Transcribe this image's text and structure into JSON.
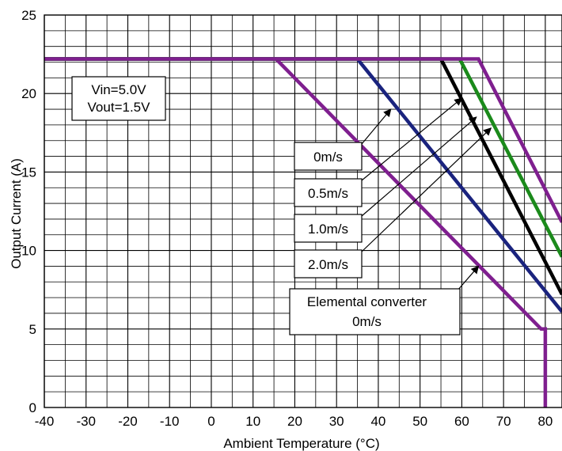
{
  "chart_data": {
    "type": "line",
    "title": "",
    "xlabel": "Ambient Temperature (°C)",
    "ylabel": "Output Current (A)",
    "xlim": [
      -40,
      84
    ],
    "ylim": [
      0,
      25
    ],
    "x_ticks": [
      -40,
      -30,
      -20,
      -10,
      0,
      10,
      20,
      30,
      40,
      50,
      60,
      70,
      80
    ],
    "y_ticks": [
      0,
      5,
      10,
      15,
      20,
      25
    ],
    "x_tick_labels": [
      "-40",
      "-30",
      "-20",
      "-10",
      "0",
      "10",
      "20",
      "30",
      "40",
      "50",
      "60",
      "70",
      "80"
    ],
    "y_tick_labels": [
      "0",
      "5",
      "10",
      "15",
      "20",
      "25"
    ],
    "grid": true,
    "legend": "none",
    "series": [
      {
        "label_ref": "elemental",
        "color": "#7f1f8f",
        "points": [
          [
            -40,
            22.2
          ],
          [
            15.5,
            22.2
          ],
          [
            79,
            5.0
          ],
          [
            80,
            5.0
          ],
          [
            80,
            0
          ]
        ]
      },
      {
        "label_ref": "0ms",
        "color": "#1a237e",
        "points": [
          [
            -40,
            22.2
          ],
          [
            35,
            22.2
          ],
          [
            84,
            6.1
          ]
        ]
      },
      {
        "label_ref": "05ms",
        "color": "#000000",
        "points": [
          [
            -40,
            22.2
          ],
          [
            55,
            22.2
          ],
          [
            84,
            7.2
          ]
        ]
      },
      {
        "label_ref": "10ms",
        "color": "#1b8a1b",
        "points": [
          [
            -40,
            22.2
          ],
          [
            59.5,
            22.2
          ],
          [
            84,
            9.6
          ]
        ]
      },
      {
        "label_ref": "20ms",
        "color": "#7f1f8f",
        "points": [
          [
            -40,
            22.2
          ],
          [
            64,
            22.2
          ],
          [
            84,
            11.8
          ]
        ]
      }
    ],
    "annotations": {
      "conditions": {
        "lines": [
          "Vin=5.0V",
          "Vout=1.5V"
        ]
      },
      "labels": [
        {
          "id": "0ms",
          "text": "0m/s",
          "arrow_to": [
            43,
            19
          ]
        },
        {
          "id": "05ms",
          "text": "0.5m/s",
          "arrow_to": [
            60,
            19.7
          ]
        },
        {
          "id": "10ms",
          "text": "1.0m/s",
          "arrow_to": [
            63.5,
            18.5
          ]
        },
        {
          "id": "20ms",
          "text": "2.0m/s",
          "arrow_to": [
            67,
            17.8
          ]
        }
      ],
      "elemental": {
        "lines": [
          "Elemental converter",
          "0m/s"
        ],
        "arrow_to": [
          64,
          9.0
        ]
      }
    }
  }
}
